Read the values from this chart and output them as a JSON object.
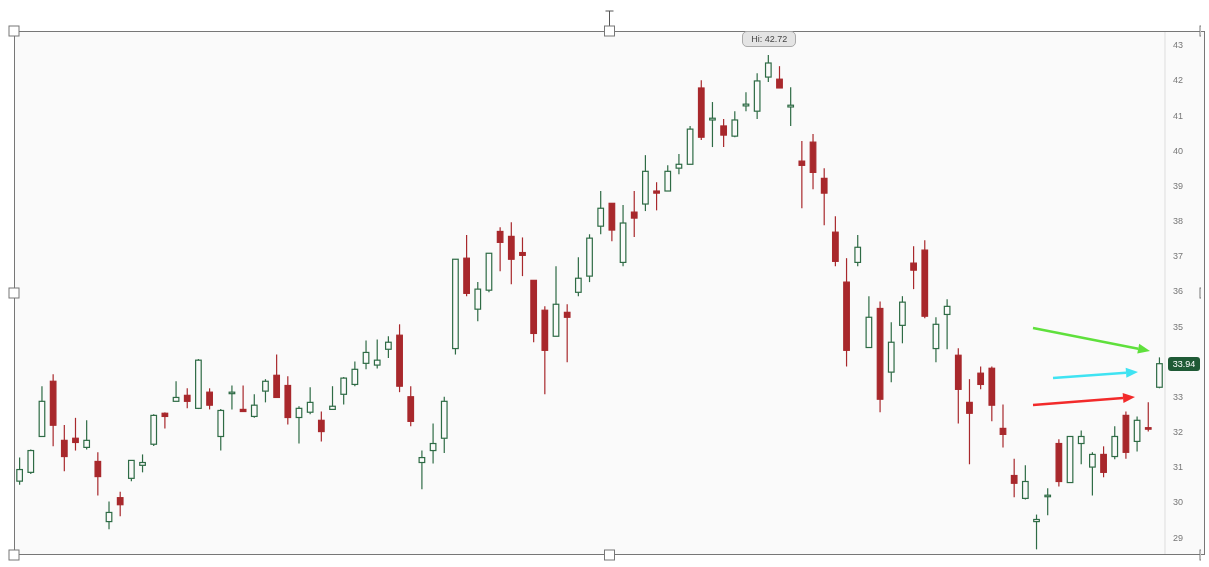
{
  "chart_data": {
    "type": "candlestick",
    "categories": [
      null,
      null,
      null,
      null,
      null,
      null,
      null,
      null,
      null,
      null,
      null,
      null,
      null,
      null,
      null,
      null,
      null,
      null,
      null,
      null,
      null,
      null,
      null,
      null,
      null,
      null,
      null,
      null,
      null,
      null,
      null,
      null,
      null,
      null,
      null,
      null,
      null,
      null,
      null,
      null,
      null,
      null,
      null,
      null,
      null,
      null,
      null,
      null,
      null,
      null,
      null,
      null,
      null,
      null,
      null,
      null,
      null,
      null,
      null,
      null,
      null,
      null,
      null,
      null,
      null,
      null,
      null,
      null,
      null,
      null,
      null,
      null,
      null,
      null,
      null,
      null,
      null,
      null,
      null,
      null,
      null,
      null,
      null,
      null,
      null,
      null,
      null,
      null,
      null,
      null,
      null,
      null,
      null,
      null,
      null,
      null,
      null,
      null,
      null,
      null,
      null,
      null,
      null
    ],
    "ohlc": [
      [
        30.6,
        31.27,
        30.5,
        30.93
      ],
      [
        30.85,
        31.5,
        30.8,
        31.47
      ],
      [
        31.87,
        33.3,
        31.87,
        32.87
      ],
      [
        33.44,
        33.64,
        31.59,
        32.19
      ],
      [
        31.76,
        32.2,
        30.88,
        31.3
      ],
      [
        31.82,
        32.4,
        31.47,
        31.7
      ],
      [
        31.56,
        32.33,
        31.5,
        31.76
      ],
      [
        31.16,
        31.42,
        30.19,
        30.73
      ],
      [
        29.45,
        30.02,
        29.23,
        29.71
      ],
      [
        30.13,
        30.3,
        29.6,
        29.93
      ],
      [
        30.68,
        31.2,
        30.6,
        31.19
      ],
      [
        31.05,
        31.36,
        30.85,
        31.13
      ],
      [
        31.65,
        32.5,
        31.6,
        32.47
      ],
      [
        32.53,
        32.55,
        32.1,
        32.44
      ],
      [
        32.87,
        33.44,
        32.87,
        32.98
      ],
      [
        33.04,
        33.24,
        32.67,
        32.87
      ],
      [
        32.67,
        34.07,
        32.65,
        34.04
      ],
      [
        33.13,
        33.24,
        32.64,
        32.76
      ],
      [
        31.87,
        32.65,
        31.47,
        32.61
      ],
      [
        33.1,
        33.32,
        32.64,
        33.13
      ],
      [
        32.64,
        33.32,
        32.58,
        32.58
      ],
      [
        32.44,
        33.07,
        32.4,
        32.76
      ],
      [
        33.16,
        33.5,
        32.84,
        33.44
      ],
      [
        33.61,
        34.2,
        32.98,
        32.98
      ],
      [
        33.32,
        33.58,
        32.21,
        32.41
      ],
      [
        32.41,
        32.73,
        31.67,
        32.67
      ],
      [
        32.56,
        33.27,
        32.5,
        32.84
      ],
      [
        32.33,
        32.58,
        31.73,
        32.01
      ],
      [
        32.64,
        33.3,
        32.64,
        32.73
      ],
      [
        33.07,
        33.56,
        32.78,
        33.53
      ],
      [
        33.35,
        34.0,
        33.3,
        33.78
      ],
      [
        33.95,
        34.6,
        33.78,
        34.26
      ],
      [
        33.9,
        34.63,
        33.8,
        34.04
      ],
      [
        34.35,
        34.72,
        34.1,
        34.55
      ],
      [
        34.75,
        35.06,
        33.13,
        33.3
      ],
      [
        33.0,
        33.3,
        32.16,
        32.3
      ],
      [
        31.13,
        31.47,
        30.37,
        31.27
      ],
      [
        31.47,
        32.24,
        31.1,
        31.67
      ],
      [
        31.82,
        33.0,
        31.4,
        32.87
      ],
      [
        34.37,
        36.91,
        34.2,
        36.91
      ],
      [
        36.94,
        37.6,
        35.86,
        35.94
      ],
      [
        35.49,
        36.26,
        35.15,
        36.06
      ],
      [
        36.03,
        37.08,
        35.97,
        37.08
      ],
      [
        37.7,
        37.82,
        36.57,
        37.39
      ],
      [
        37.56,
        37.96,
        36.2,
        36.91
      ],
      [
        37.1,
        37.53,
        36.43,
        37.02
      ],
      [
        36.31,
        36.31,
        34.55,
        34.8
      ],
      [
        35.46,
        35.57,
        33.07,
        34.32
      ],
      [
        34.72,
        36.71,
        34.72,
        35.63
      ],
      [
        35.4,
        35.63,
        33.98,
        35.26
      ],
      [
        35.97,
        36.97,
        35.86,
        36.37
      ],
      [
        36.43,
        37.62,
        36.26,
        37.51
      ],
      [
        37.85,
        38.85,
        37.62,
        38.36
      ],
      [
        38.5,
        38.5,
        37.42,
        37.74
      ],
      [
        36.82,
        38.45,
        36.71,
        37.94
      ],
      [
        38.25,
        38.85,
        37.54,
        38.08
      ],
      [
        38.48,
        39.87,
        38.28,
        39.41
      ],
      [
        38.85,
        39.1,
        38.3,
        38.79
      ],
      [
        38.85,
        39.58,
        38.85,
        39.41
      ],
      [
        39.5,
        39.9,
        39.33,
        39.61
      ],
      [
        39.61,
        40.7,
        39.61,
        40.61
      ],
      [
        41.78,
        42.0,
        40.3,
        40.38
      ],
      [
        40.87,
        41.38,
        40.1,
        40.92
      ],
      [
        40.7,
        40.9,
        40.1,
        40.44
      ],
      [
        40.41,
        41.12,
        40.38,
        40.87
      ],
      [
        41.27,
        41.66,
        41.12,
        41.32
      ],
      [
        41.12,
        42.2,
        40.9,
        41.98
      ],
      [
        42.09,
        42.72,
        41.95,
        42.49
      ],
      [
        42.03,
        42.4,
        41.78,
        41.78
      ],
      [
        41.24,
        41.8,
        40.7,
        41.29
      ],
      [
        39.7,
        40.27,
        38.36,
        39.58
      ],
      [
        40.24,
        40.47,
        38.9,
        39.38
      ],
      [
        39.21,
        39.5,
        37.88,
        38.79
      ],
      [
        37.68,
        38.13,
        36.71,
        36.85
      ],
      [
        36.26,
        36.94,
        33.86,
        34.32
      ],
      [
        36.82,
        37.6,
        36.71,
        37.25
      ],
      [
        34.4,
        35.86,
        34.4,
        35.26
      ],
      [
        35.51,
        35.71,
        32.56,
        32.93
      ],
      [
        33.7,
        35.12,
        33.41,
        34.55
      ],
      [
        35.03,
        35.86,
        34.52,
        35.69
      ],
      [
        36.8,
        37.28,
        36.06,
        36.6
      ],
      [
        37.17,
        37.45,
        35.23,
        35.29
      ],
      [
        34.37,
        35.26,
        33.98,
        35.06
      ],
      [
        35.34,
        35.77,
        34.35,
        35.57
      ],
      [
        34.18,
        34.38,
        32.24,
        33.21
      ],
      [
        32.84,
        33.5,
        31.08,
        32.53
      ],
      [
        33.67,
        33.86,
        33.21,
        33.35
      ],
      [
        33.81,
        33.86,
        32.3,
        32.76
      ],
      [
        32.1,
        32.78,
        31.56,
        31.93
      ],
      [
        30.76,
        31.24,
        30.14,
        30.54
      ],
      [
        30.11,
        31.05,
        30.08,
        30.59
      ],
      [
        29.45,
        29.65,
        28.66,
        29.51
      ],
      [
        30.17,
        30.4,
        29.63,
        30.2
      ],
      [
        31.67,
        31.79,
        30.45,
        30.59
      ],
      [
        30.56,
        31.87,
        30.56,
        31.87
      ],
      [
        31.67,
        32.04,
        31.08,
        31.87
      ],
      [
        31.0,
        31.42,
        30.19,
        31.36
      ],
      [
        31.36,
        31.59,
        30.71,
        30.85
      ],
      [
        31.3,
        32.16,
        31.22,
        31.87
      ],
      [
        32.47,
        32.58,
        31.24,
        31.42
      ],
      [
        31.73,
        32.44,
        31.44,
        32.33
      ],
      [
        32.12,
        32.84,
        32.01,
        32.1
      ],
      [
        33.27,
        34.12,
        33.24,
        33.94
      ]
    ],
    "ylim": [
      28.5,
      43.4
    ],
    "yticks": [
      29,
      30,
      31,
      32,
      33,
      35,
      36,
      37,
      38,
      39,
      40,
      41,
      42,
      43
    ],
    "annotations": [
      {
        "text": "Hi: 42.72",
        "y": 42.72
      },
      "33.94"
    ]
  }
}
